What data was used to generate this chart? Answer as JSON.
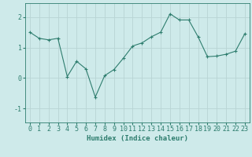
{
  "x": [
    0,
    1,
    2,
    3,
    4,
    5,
    6,
    7,
    8,
    9,
    10,
    11,
    12,
    13,
    14,
    15,
    16,
    17,
    18,
    19,
    20,
    21,
    22,
    23
  ],
  "y": [
    1.5,
    1.3,
    1.25,
    1.3,
    0.05,
    0.55,
    0.3,
    -0.62,
    0.08,
    0.28,
    0.65,
    1.05,
    1.15,
    1.35,
    1.5,
    2.1,
    1.9,
    1.9,
    1.35,
    0.7,
    0.72,
    0.78,
    0.88,
    1.45
  ],
  "line_color": "#2e7d6e",
  "marker": "+",
  "marker_size": 3,
  "background_color": "#ceeaea",
  "grid_color": "#b8d4d4",
  "xlabel": "Humidex (Indice chaleur)",
  "ylim": [
    -1.45,
    2.45
  ],
  "xlim": [
    -0.5,
    23.5
  ],
  "xticks": [
    0,
    1,
    2,
    3,
    4,
    5,
    6,
    7,
    8,
    9,
    10,
    11,
    12,
    13,
    14,
    15,
    16,
    17,
    18,
    19,
    20,
    21,
    22,
    23
  ],
  "yticks": [
    -1,
    0,
    1,
    2
  ],
  "xlabel_fontsize": 6.5,
  "tick_fontsize": 6
}
